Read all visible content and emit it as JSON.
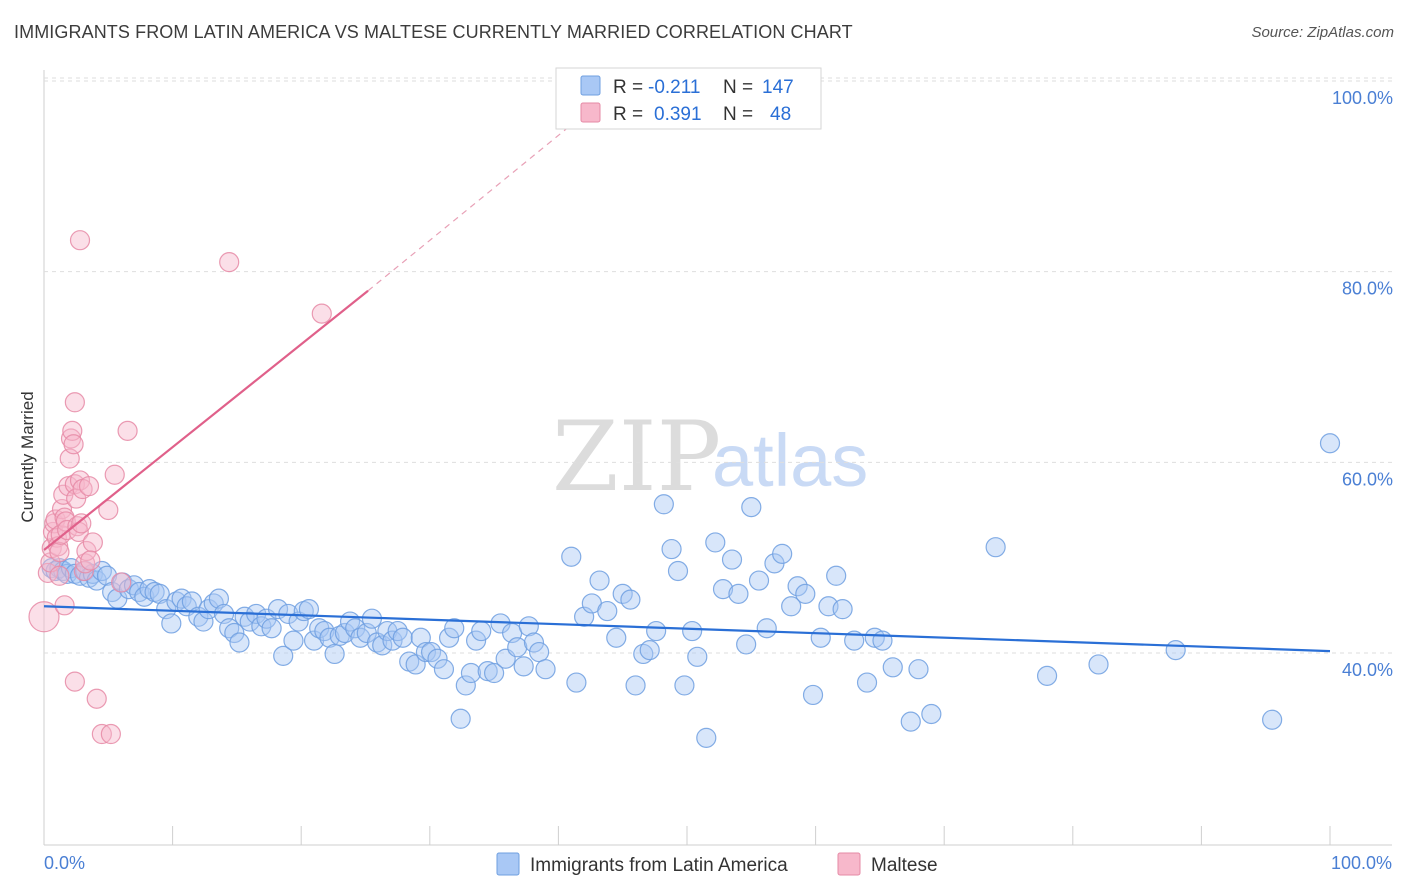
{
  "title": "IMMIGRANTS FROM LATIN AMERICA VS MALTESE CURRENTLY MARRIED CORRELATION CHART",
  "source": "Source: ZipAtlas.com",
  "watermark": {
    "zip": "ZIP",
    "atlas": "atlas"
  },
  "legend_box": {
    "rows": [
      {
        "r_label": "R =",
        "r_value": "-0.211",
        "n_label": "N =",
        "n_value": "147",
        "color": "#a9c8f5",
        "stroke": "#6f9fe0"
      },
      {
        "r_label": "R =",
        "r_value": "0.391",
        "n_label": "N =",
        "n_value": "48",
        "color": "#f7b8cb",
        "stroke": "#e68aa6"
      }
    ]
  },
  "bottom_legend": [
    {
      "label": "Immigrants from Latin America",
      "color": "#a9c8f5",
      "stroke": "#6f9fe0"
    },
    {
      "label": "Maltese",
      "color": "#f7b8cb",
      "stroke": "#e68aa6"
    }
  ],
  "chart_data": {
    "type": "scatter",
    "title": "IMMIGRANTS FROM LATIN AMERICA VS MALTESE CURRENTLY MARRIED CORRELATION CHART",
    "xlabel": "",
    "ylabel": "Currently Married",
    "xlim": [
      0,
      100
    ],
    "ylim": [
      20,
      100
    ],
    "x_tick_labels": [
      "0.0%",
      "100.0%"
    ],
    "y_ticks": [
      40,
      60,
      80,
      100
    ],
    "y_tick_labels": [
      "40.0%",
      "60.0%",
      "80.0%",
      "100.0%"
    ],
    "grid": true,
    "legend_position": "top-center",
    "series": [
      {
        "name": "Immigrants from Latin America",
        "color": "#6f9fe0",
        "fill": "#a9c8f5",
        "R": -0.211,
        "N": 147,
        "trend": {
          "x": [
            0,
            100
          ],
          "y": [
            44.9,
            40.2
          ]
        },
        "points": [
          [
            0.6,
            48.9
          ],
          [
            0.9,
            48.6
          ],
          [
            1.2,
            48.9
          ],
          [
            1.5,
            48.6
          ],
          [
            1.8,
            48.3
          ],
          [
            2.1,
            48.9
          ],
          [
            2.4,
            48.3
          ],
          [
            2.8,
            48.1
          ],
          [
            3.2,
            48.6
          ],
          [
            3.5,
            47.9
          ],
          [
            3.8,
            48.3
          ],
          [
            4.1,
            47.6
          ],
          [
            4.5,
            48.6
          ],
          [
            4.9,
            48.1
          ],
          [
            5.3,
            46.4
          ],
          [
            5.7,
            45.7
          ],
          [
            6.1,
            47.4
          ],
          [
            6.6,
            46.7
          ],
          [
            7.0,
            47.1
          ],
          [
            7.4,
            46.4
          ],
          [
            7.8,
            45.9
          ],
          [
            8.2,
            46.7
          ],
          [
            8.6,
            46.4
          ],
          [
            9.0,
            46.2
          ],
          [
            9.5,
            44.6
          ],
          [
            9.9,
            43.1
          ],
          [
            10.3,
            45.4
          ],
          [
            10.7,
            45.7
          ],
          [
            11.1,
            44.9
          ],
          [
            11.5,
            45.4
          ],
          [
            12.0,
            43.8
          ],
          [
            12.4,
            43.3
          ],
          [
            12.8,
            44.6
          ],
          [
            13.2,
            45.2
          ],
          [
            13.6,
            45.7
          ],
          [
            14.0,
            44.1
          ],
          [
            14.4,
            42.6
          ],
          [
            14.8,
            42.1
          ],
          [
            15.2,
            41.1
          ],
          [
            15.6,
            43.8
          ],
          [
            16.0,
            43.3
          ],
          [
            16.5,
            44.1
          ],
          [
            16.9,
            42.8
          ],
          [
            17.3,
            43.6
          ],
          [
            17.7,
            42.6
          ],
          [
            18.2,
            44.6
          ],
          [
            18.6,
            39.7
          ],
          [
            19.0,
            44.1
          ],
          [
            19.4,
            41.3
          ],
          [
            19.8,
            43.3
          ],
          [
            20.2,
            44.4
          ],
          [
            20.6,
            44.6
          ],
          [
            21.0,
            41.3
          ],
          [
            21.4,
            42.6
          ],
          [
            21.8,
            42.3
          ],
          [
            22.2,
            41.6
          ],
          [
            22.6,
            39.9
          ],
          [
            23.0,
            41.8
          ],
          [
            23.4,
            42.1
          ],
          [
            23.8,
            43.3
          ],
          [
            24.2,
            42.6
          ],
          [
            24.6,
            41.6
          ],
          [
            25.1,
            42.1
          ],
          [
            25.5,
            43.6
          ],
          [
            25.9,
            41.1
          ],
          [
            26.3,
            40.8
          ],
          [
            26.7,
            42.3
          ],
          [
            27.1,
            41.3
          ],
          [
            27.5,
            42.3
          ],
          [
            27.9,
            41.6
          ],
          [
            28.4,
            39.1
          ],
          [
            28.9,
            38.8
          ],
          [
            29.3,
            41.6
          ],
          [
            29.7,
            40.1
          ],
          [
            30.1,
            40.1
          ],
          [
            30.6,
            39.4
          ],
          [
            31.1,
            38.3
          ],
          [
            31.5,
            41.6
          ],
          [
            31.9,
            42.6
          ],
          [
            32.4,
            33.1
          ],
          [
            32.8,
            36.6
          ],
          [
            33.2,
            37.9
          ],
          [
            33.6,
            41.3
          ],
          [
            34.0,
            42.3
          ],
          [
            34.5,
            38.1
          ],
          [
            35.0,
            37.9
          ],
          [
            35.5,
            43.1
          ],
          [
            35.9,
            39.4
          ],
          [
            36.4,
            42.1
          ],
          [
            36.8,
            40.6
          ],
          [
            37.3,
            38.6
          ],
          [
            37.7,
            42.8
          ],
          [
            38.1,
            41.1
          ],
          [
            38.5,
            40.1
          ],
          [
            39.0,
            38.3
          ],
          [
            41.0,
            50.1
          ],
          [
            41.4,
            36.9
          ],
          [
            42.0,
            43.8
          ],
          [
            42.6,
            45.2
          ],
          [
            43.2,
            47.6
          ],
          [
            43.8,
            44.4
          ],
          [
            44.5,
            41.6
          ],
          [
            45.0,
            46.2
          ],
          [
            45.6,
            45.6
          ],
          [
            46.0,
            36.6
          ],
          [
            46.6,
            39.9
          ],
          [
            47.1,
            40.3
          ],
          [
            47.6,
            42.3
          ],
          [
            48.2,
            55.6
          ],
          [
            48.8,
            50.9
          ],
          [
            49.3,
            48.6
          ],
          [
            49.8,
            36.6
          ],
          [
            50.4,
            42.3
          ],
          [
            50.8,
            39.6
          ],
          [
            51.5,
            31.1
          ],
          [
            52.2,
            51.6
          ],
          [
            52.8,
            46.7
          ],
          [
            53.5,
            49.8
          ],
          [
            54.0,
            46.2
          ],
          [
            54.6,
            40.9
          ],
          [
            55.0,
            55.3
          ],
          [
            55.6,
            47.6
          ],
          [
            56.2,
            42.6
          ],
          [
            56.8,
            49.4
          ],
          [
            57.4,
            50.4
          ],
          [
            58.1,
            44.9
          ],
          [
            58.6,
            47.0
          ],
          [
            59.2,
            46.2
          ],
          [
            59.8,
            35.6
          ],
          [
            60.4,
            41.6
          ],
          [
            61.0,
            44.9
          ],
          [
            61.6,
            48.1
          ],
          [
            62.1,
            44.6
          ],
          [
            63.0,
            41.3
          ],
          [
            64.0,
            36.9
          ],
          [
            64.6,
            41.6
          ],
          [
            65.2,
            41.3
          ],
          [
            66.0,
            38.5
          ],
          [
            67.4,
            32.8
          ],
          [
            68.0,
            38.3
          ],
          [
            69.0,
            33.6
          ],
          [
            74.0,
            51.1
          ],
          [
            78.0,
            37.6
          ],
          [
            82.0,
            38.8
          ],
          [
            88.0,
            40.3
          ],
          [
            95.5,
            33.0
          ],
          [
            100.0,
            62.0
          ]
        ]
      },
      {
        "name": "Maltese",
        "color": "#e68aa6",
        "fill": "#f7b8cb",
        "R": 0.391,
        "N": 48,
        "trend": {
          "x": [
            0,
            25.2
          ],
          "y": [
            50.8,
            78.0
          ]
        },
        "trend_dashed_to": {
          "x": 42,
          "y": 96.5
        },
        "points": [
          [
            0.0,
            43.8
          ],
          [
            0.3,
            48.4
          ],
          [
            0.5,
            49.5
          ],
          [
            0.6,
            51.0
          ],
          [
            0.7,
            52.7
          ],
          [
            0.8,
            53.6
          ],
          [
            0.9,
            54.0
          ],
          [
            1.0,
            52.1
          ],
          [
            1.1,
            51.2
          ],
          [
            1.2,
            50.6
          ],
          [
            1.3,
            52.4
          ],
          [
            1.4,
            55.1
          ],
          [
            1.5,
            56.6
          ],
          [
            1.6,
            54.2
          ],
          [
            1.7,
            53.8
          ],
          [
            1.8,
            52.9
          ],
          [
            1.9,
            57.5
          ],
          [
            2.0,
            60.4
          ],
          [
            2.1,
            62.5
          ],
          [
            2.2,
            63.3
          ],
          [
            2.3,
            61.9
          ],
          [
            2.4,
            57.7
          ],
          [
            2.5,
            56.2
          ],
          [
            2.6,
            53.3
          ],
          [
            2.7,
            52.7
          ],
          [
            2.8,
            58.1
          ],
          [
            2.9,
            53.6
          ],
          [
            3.0,
            57.2
          ],
          [
            3.1,
            48.6
          ],
          [
            3.2,
            49.4
          ],
          [
            3.3,
            50.7
          ],
          [
            3.5,
            57.5
          ],
          [
            3.8,
            51.6
          ],
          [
            4.1,
            35.2
          ],
          [
            4.5,
            31.5
          ],
          [
            5.0,
            55.0
          ],
          [
            5.2,
            31.5
          ],
          [
            5.5,
            58.7
          ],
          [
            6.5,
            63.3
          ],
          [
            2.4,
            66.3
          ],
          [
            2.8,
            83.3
          ],
          [
            14.4,
            81.0
          ],
          [
            21.6,
            75.6
          ],
          [
            1.6,
            45.0
          ],
          [
            2.4,
            37.0
          ],
          [
            3.6,
            49.7
          ],
          [
            6.0,
            47.4
          ],
          [
            1.2,
            48.1
          ]
        ]
      }
    ]
  }
}
